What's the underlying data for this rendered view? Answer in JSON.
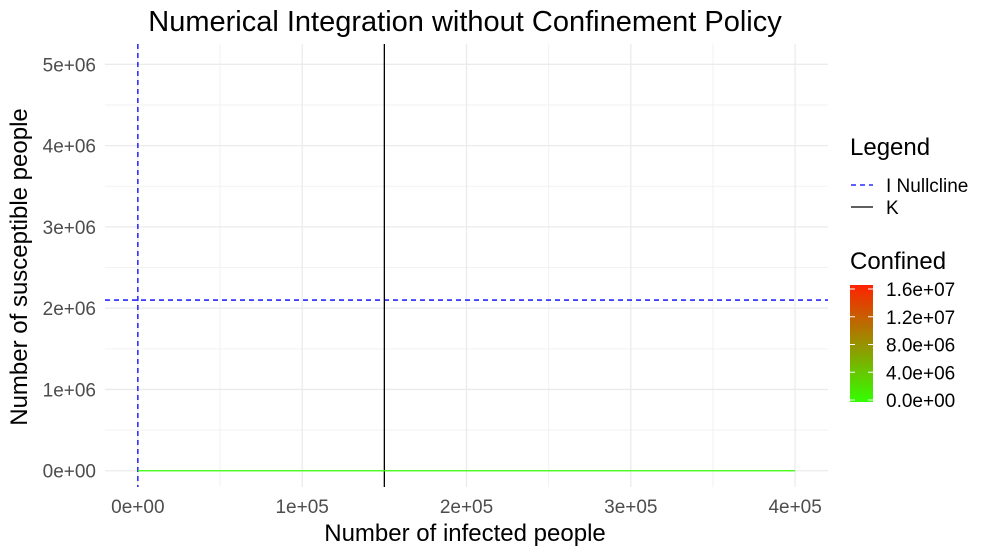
{
  "chart_data": {
    "type": "line",
    "title": "Numerical Integration without Confinement Policy",
    "xlabel": "Number of infected people",
    "ylabel": "Number of susceptible people",
    "xlim": [
      -20000,
      420000
    ],
    "ylim": [
      -200000,
      5250000
    ],
    "x_ticks": [
      0,
      100000,
      200000,
      300000,
      400000
    ],
    "x_tick_labels": [
      "0e+00",
      "1e+05",
      "2e+05",
      "3e+05",
      "4e+05"
    ],
    "y_ticks": [
      0,
      1000000,
      2000000,
      3000000,
      4000000,
      5000000
    ],
    "y_tick_labels": [
      "0e+00",
      "1e+06",
      "2e+06",
      "3e+06",
      "4e+06",
      "5e+06"
    ],
    "grid": true,
    "legend_position": "right",
    "trajectory": {
      "x": [
        0,
        400000
      ],
      "y": [
        0,
        0
      ],
      "confined": [
        0,
        0
      ]
    },
    "reference_lines": [
      {
        "name": "I Nullcline",
        "orientation": "horizontal",
        "value": 2100000,
        "style": "dashed",
        "color": "#0000ff"
      },
      {
        "name": "I Nullcline",
        "orientation": "vertical",
        "value": 0,
        "style": "dashed",
        "color": "#0000ff"
      },
      {
        "name": "K",
        "orientation": "vertical",
        "value": 150000,
        "style": "solid",
        "color": "#000000"
      }
    ],
    "legend": {
      "title": "Legend",
      "entries": [
        {
          "label": "I Nullcline",
          "style": "dashed",
          "color": "#0000ff"
        },
        {
          "label": "K",
          "style": "solid",
          "color": "#000000"
        }
      ]
    },
    "colorbar": {
      "title": "Confined",
      "min": 0,
      "max": 16000000,
      "low_color": "#33ff00",
      "high_color": "#ff2200",
      "ticks": [
        0,
        4000000,
        8000000,
        12000000,
        16000000
      ],
      "tick_labels": [
        "0.0e+00",
        "4.0e+06",
        "8.0e+06",
        "1.2e+07",
        "1.6e+07"
      ]
    }
  }
}
